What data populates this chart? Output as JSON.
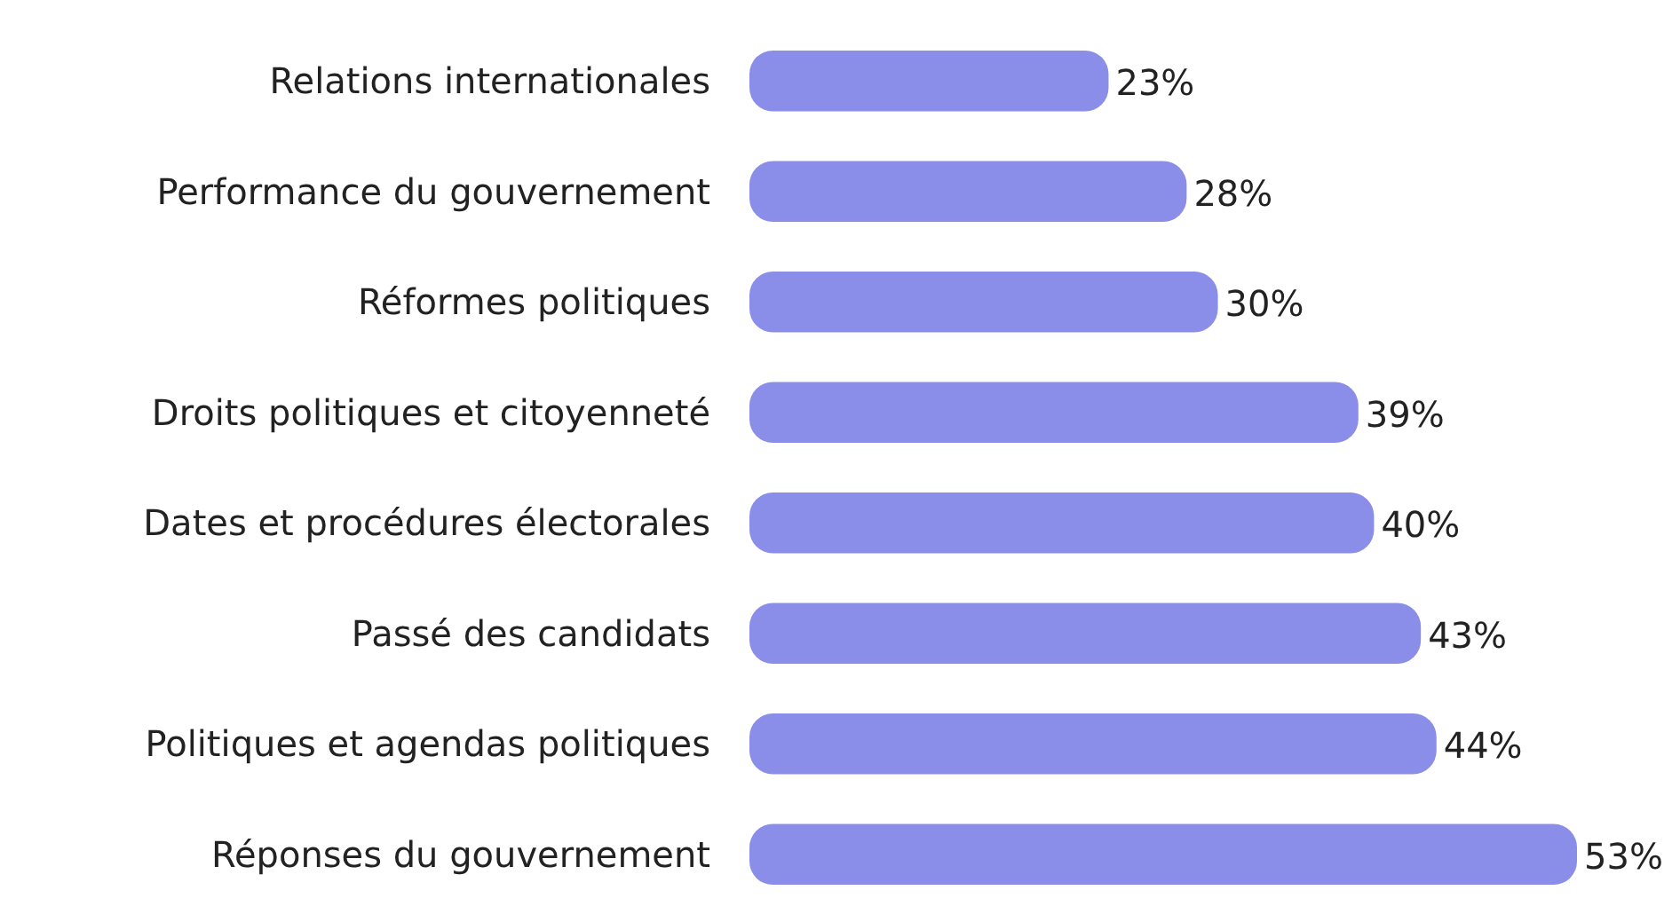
{
  "chart_data": {
    "type": "bar",
    "orientation": "horizontal",
    "categories": [
      "Relations internationales",
      "Performance du gouvernement",
      "Réformes politiques",
      "Droits politiques et citoyenneté",
      "Dates et procédures électorales",
      "Passé des candidats",
      "Politiques et agendas politiques",
      "Réponses du gouvernement"
    ],
    "values": [
      23,
      28,
      30,
      39,
      40,
      43,
      44,
      53
    ],
    "value_labels": [
      "23%",
      "28%",
      "30%",
      "39%",
      "40%",
      "43%",
      "44%",
      "53%"
    ],
    "color": "#8b8ee8"
  }
}
